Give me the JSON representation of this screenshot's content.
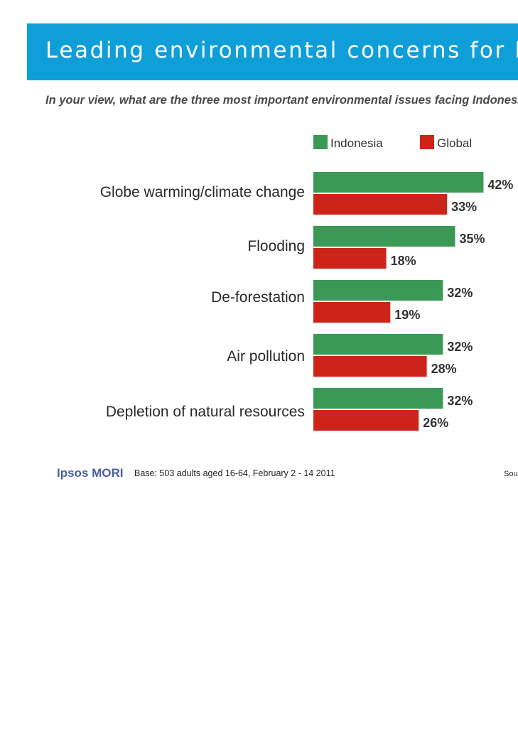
{
  "header": {
    "title": "Leading environmental concerns for Indonesia",
    "question": "In your view, what are the three most important environmental issues facing Indonesia?"
  },
  "chart_data": {
    "type": "bar",
    "orientation": "horizontal",
    "categories": [
      "Globe warming/climate change",
      "Flooding",
      "De-forestation",
      "Air pollution",
      "Depletion of natural resources"
    ],
    "series": [
      {
        "name": "Indonesia",
        "values": [
          42,
          35,
          32,
          32,
          32
        ],
        "labels": [
          "42%",
          "35%",
          "32%",
          "32%",
          "32%"
        ],
        "color": "#3a9a55"
      },
      {
        "name": "Global",
        "values": [
          33,
          18,
          19,
          28,
          26
        ],
        "labels": [
          "33%",
          "18%",
          "19%",
          "28%",
          "26%"
        ],
        "color": "#cc2418"
      }
    ],
    "legend_position": "top",
    "grid": false,
    "xlim": [
      0,
      50
    ]
  },
  "footer": {
    "logo": "Ipsos MORI",
    "base": "Base: 503 adults aged 16-64, February 2 - 14 2011",
    "source": "Source: Ipsos"
  }
}
